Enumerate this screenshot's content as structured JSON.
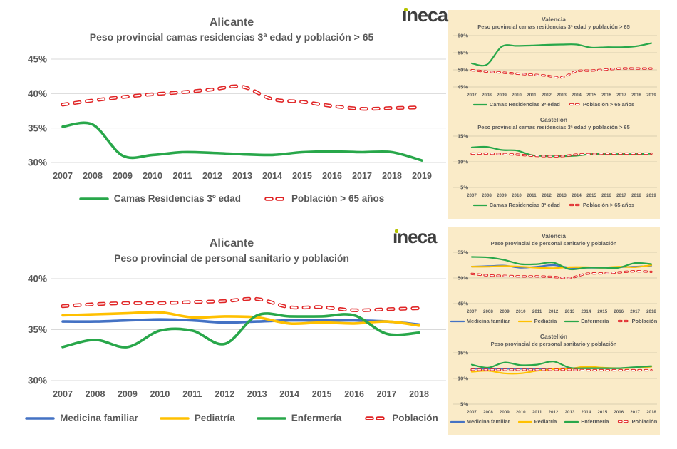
{
  "page": {
    "background": "#ffffff",
    "panel_background": "#FAEBC8"
  },
  "logo": {
    "text": "ineca",
    "color": "#3E3E3E",
    "dot_color": "#B5C400"
  },
  "palette": {
    "green": "#28A74A",
    "red": "#E02526",
    "blue": "#4472C4",
    "yellow": "#FFC000",
    "label_gray": "#595959",
    "grid_big": "#D9D9D9",
    "grid_small": "#D9CFB0"
  },
  "chart_data": [
    {
      "id": "alicante-camas",
      "type": "line",
      "size": "big",
      "title": "Alicante",
      "subtitle": "Peso provincial camas residencias 3ª edad y población > 65",
      "categories": [
        "2007",
        "2008",
        "2009",
        "2010",
        "2011",
        "2012",
        "2013",
        "2014",
        "2015",
        "2016",
        "2017",
        "2018",
        "2019"
      ],
      "ylim": [
        30,
        45
      ],
      "yticks": [
        45,
        40,
        35,
        30
      ],
      "grid": true,
      "legend_position": "bottom",
      "series": [
        {
          "name": "Camas Residencias 3º edad",
          "color": "#28A74A",
          "style": "solid",
          "values": [
            35.2,
            35.5,
            31.0,
            31.1,
            31.5,
            31.4,
            31.2,
            31.1,
            31.5,
            31.6,
            31.5,
            31.5,
            30.3
          ]
        },
        {
          "name": "Población > 65 años",
          "color": "#E02526",
          "style": "dashed",
          "values": [
            38.4,
            39.0,
            39.5,
            39.9,
            40.2,
            40.6,
            41.0,
            39.2,
            38.8,
            38.2,
            37.8,
            37.9,
            38.0
          ]
        }
      ]
    },
    {
      "id": "valencia-camas",
      "type": "line",
      "size": "small",
      "title": "Valencia",
      "subtitle": "Peso provincial camas residencias 3ª edad y población > 65",
      "categories": [
        "2007",
        "2008",
        "2009",
        "2010",
        "2011",
        "2012",
        "2013",
        "2014",
        "2015",
        "2016",
        "2017",
        "2018",
        "2019"
      ],
      "ylim": [
        45,
        60
      ],
      "yticks": [
        60,
        55,
        50,
        45
      ],
      "grid": true,
      "legend_position": "bottom",
      "series": [
        {
          "name": "Camas Residencias 3ª edad",
          "color": "#28A74A",
          "style": "solid",
          "values": [
            51.9,
            51.5,
            56.8,
            57.0,
            57.1,
            57.3,
            57.4,
            57.4,
            56.5,
            56.6,
            56.6,
            56.9,
            57.8
          ]
        },
        {
          "name": "Población > 65 años",
          "color": "#E02526",
          "style": "dashed",
          "values": [
            49.9,
            49.5,
            49.2,
            48.9,
            48.6,
            48.3,
            47.8,
            49.6,
            49.8,
            50.1,
            50.4,
            50.4,
            50.4
          ]
        }
      ]
    },
    {
      "id": "castellon-camas",
      "type": "line",
      "size": "small",
      "title": "Castellón",
      "subtitle": "Peso provincial camas residencias 3ª edad y población > 65",
      "categories": [
        "2007",
        "2008",
        "2009",
        "2010",
        "2011",
        "2012",
        "2013",
        "2014",
        "2015",
        "2016",
        "2017",
        "2018",
        "2019"
      ],
      "ylim": [
        5,
        15
      ],
      "yticks": [
        15,
        10,
        5
      ],
      "grid": true,
      "legend_position": "bottom",
      "series": [
        {
          "name": "Camas Residencias 3ª edad",
          "color": "#28A74A",
          "style": "solid",
          "values": [
            12.8,
            12.9,
            12.3,
            12.2,
            11.3,
            11.1,
            11.1,
            11.2,
            11.5,
            11.5,
            11.5,
            11.5,
            11.6
          ]
        },
        {
          "name": "Población > 65 años",
          "color": "#E02526",
          "style": "dashed",
          "values": [
            11.6,
            11.6,
            11.5,
            11.4,
            11.2,
            11.1,
            11.1,
            11.4,
            11.5,
            11.6,
            11.6,
            11.6,
            11.6
          ]
        }
      ]
    },
    {
      "id": "alicante-sanitario",
      "type": "line",
      "size": "big",
      "title": "Alicante",
      "subtitle": "Peso provincial de personal sanitario y población",
      "categories": [
        "2007",
        "2008",
        "2009",
        "2010",
        "2011",
        "2012",
        "2013",
        "2014",
        "2015",
        "2016",
        "2017",
        "2018"
      ],
      "ylim": [
        30,
        40
      ],
      "yticks": [
        40,
        35,
        30
      ],
      "grid": true,
      "legend_position": "bottom",
      "series": [
        {
          "name": "Medicina familiar",
          "color": "#4472C4",
          "style": "solid",
          "values": [
            35.8,
            35.8,
            35.9,
            36.0,
            35.9,
            35.7,
            35.8,
            35.9,
            35.9,
            35.9,
            35.8,
            35.5
          ]
        },
        {
          "name": "Pediatría",
          "color": "#FFC000",
          "style": "solid",
          "values": [
            36.4,
            36.5,
            36.6,
            36.7,
            36.2,
            36.3,
            36.2,
            35.6,
            35.7,
            35.6,
            35.8,
            35.4
          ]
        },
        {
          "name": "Enfermería",
          "color": "#28A74A",
          "style": "solid",
          "values": [
            33.3,
            34.0,
            33.3,
            34.9,
            34.9,
            33.6,
            36.4,
            36.3,
            36.3,
            36.4,
            34.6,
            34.7
          ]
        },
        {
          "name": "Población",
          "color": "#E02526",
          "style": "dashed",
          "values": [
            37.3,
            37.5,
            37.6,
            37.6,
            37.7,
            37.8,
            38.0,
            37.2,
            37.2,
            36.9,
            37.0,
            37.1
          ]
        }
      ]
    },
    {
      "id": "valencia-sanitario",
      "type": "line",
      "size": "small",
      "title": "Valencia",
      "subtitle": "Peso provincial de personal sanitario y población",
      "categories": [
        "2007",
        "2008",
        "2009",
        "2010",
        "2011",
        "2012",
        "2013",
        "2014",
        "2015",
        "2016",
        "2017",
        "2018"
      ],
      "ylim": [
        45,
        55
      ],
      "yticks": [
        55,
        50,
        45
      ],
      "grid": true,
      "legend_position": "bottom",
      "series": [
        {
          "name": "Medicina familiar",
          "color": "#4472C4",
          "style": "solid",
          "values": [
            52.2,
            52.3,
            52.4,
            52.0,
            52.2,
            52.5,
            52.0,
            52.0,
            52.0,
            52.1,
            52.2,
            52.4
          ]
        },
        {
          "name": "Pediatría",
          "color": "#FFC000",
          "style": "solid",
          "values": [
            52.2,
            52.2,
            52.3,
            52.2,
            52.0,
            51.9,
            52.1,
            52.1,
            52.0,
            52.2,
            52.1,
            52.5
          ]
        },
        {
          "name": "Enfermería",
          "color": "#28A74A",
          "style": "solid",
          "values": [
            54.1,
            54.0,
            53.5,
            52.7,
            52.7,
            53.0,
            51.7,
            52.0,
            52.0,
            52.0,
            52.9,
            52.7
          ]
        },
        {
          "name": "Población",
          "color": "#E02526",
          "style": "dashed",
          "values": [
            50.8,
            50.5,
            50.4,
            50.3,
            50.3,
            50.2,
            50.0,
            50.8,
            50.9,
            51.1,
            51.3,
            51.2
          ]
        }
      ]
    },
    {
      "id": "castellon-sanitario",
      "type": "line",
      "size": "small",
      "title": "Castellón",
      "subtitle": "Peso provincial de personal sanitario y población",
      "categories": [
        "2007",
        "2008",
        "2009",
        "2010",
        "2011",
        "2012",
        "2013",
        "2014",
        "2015",
        "2016",
        "2017",
        "2018"
      ],
      "ylim": [
        5,
        15
      ],
      "yticks": [
        15,
        10,
        5
      ],
      "grid": true,
      "legend_position": "bottom",
      "series": [
        {
          "name": "Medicina familiar",
          "color": "#4472C4",
          "style": "solid",
          "values": [
            11.9,
            11.9,
            11.9,
            11.9,
            11.9,
            11.9,
            12.0,
            12.0,
            12.0,
            12.0,
            12.1,
            12.3
          ]
        },
        {
          "name": "Pediatría",
          "color": "#FFC000",
          "style": "solid",
          "values": [
            11.3,
            11.5,
            11.0,
            11.0,
            11.5,
            11.8,
            11.9,
            12.3,
            12.1,
            12.0,
            12.1,
            12.3
          ]
        },
        {
          "name": "Enfermería",
          "color": "#28A74A",
          "style": "solid",
          "values": [
            12.7,
            12.1,
            13.1,
            12.6,
            12.7,
            13.3,
            12.1,
            12.0,
            12.0,
            12.0,
            12.2,
            12.4
          ]
        },
        {
          "name": "Población",
          "color": "#E02526",
          "style": "dashed",
          "values": [
            11.7,
            11.7,
            11.7,
            11.7,
            11.7,
            11.7,
            11.7,
            11.6,
            11.6,
            11.6,
            11.6,
            11.6
          ]
        }
      ]
    }
  ]
}
